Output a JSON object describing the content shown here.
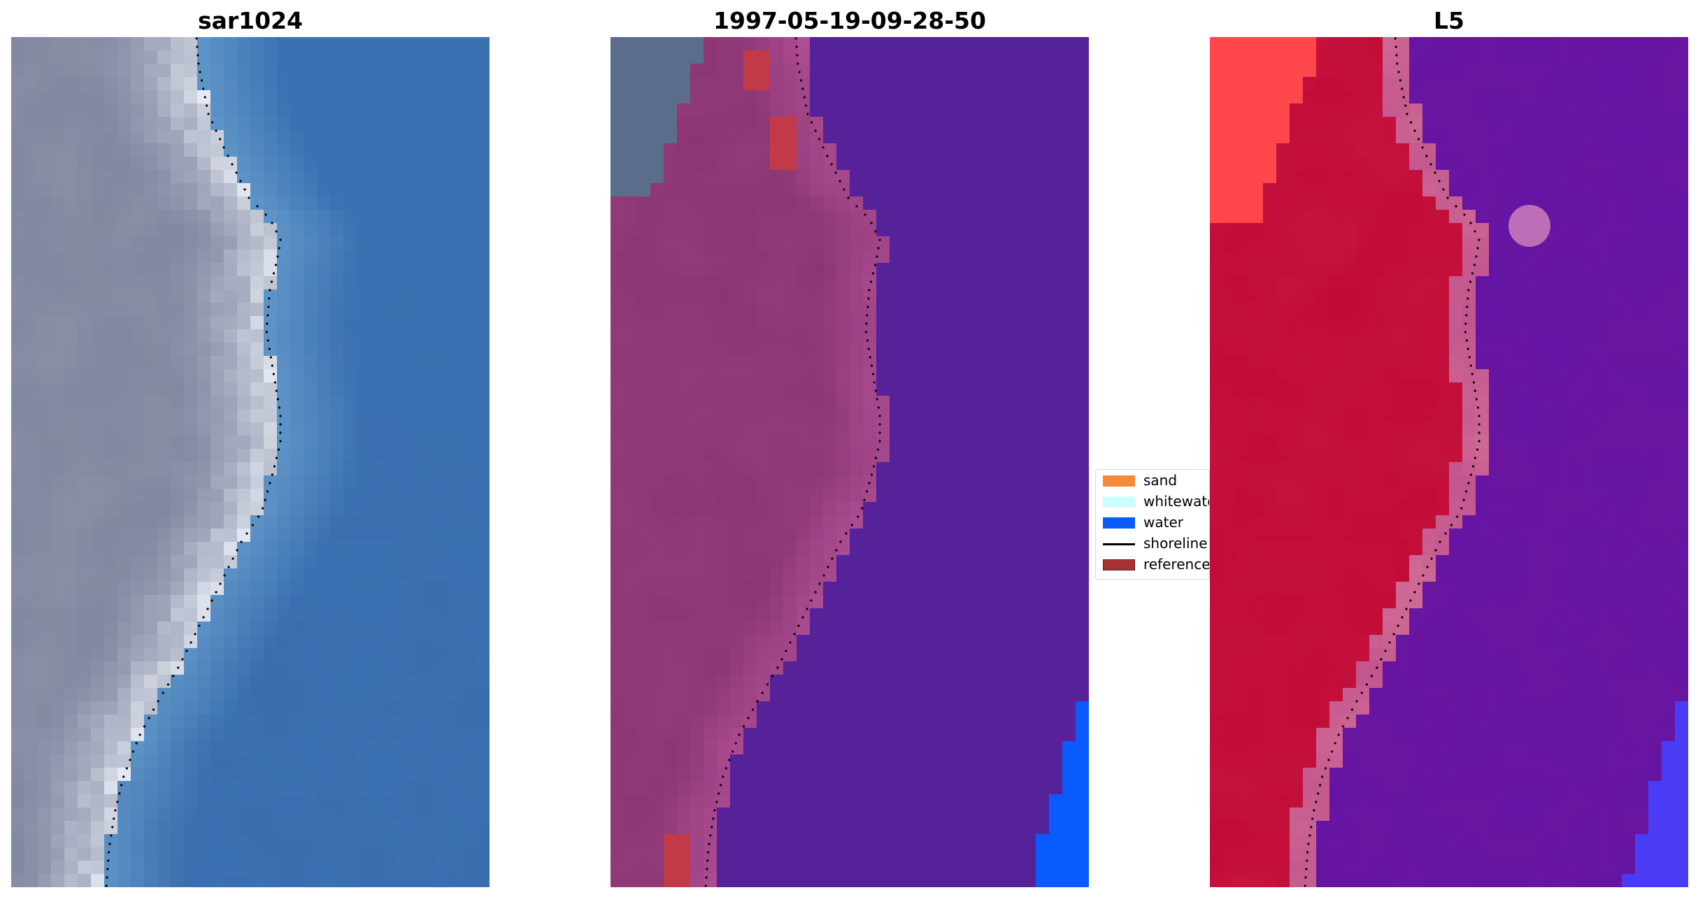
{
  "panels": [
    {
      "title": "sar1024"
    },
    {
      "title": "1997-05-19-09-28-50"
    },
    {
      "title": "L5"
    }
  ],
  "legend": {
    "items": [
      {
        "label": "sand",
        "color": "#f58a3c",
        "kind": "patch"
      },
      {
        "label": "whitewater",
        "color": "#ccfffb",
        "kind": "patch"
      },
      {
        "label": "water",
        "color": "#0a5bfd",
        "kind": "patch"
      },
      {
        "label": "shoreline",
        "color": "#000000",
        "kind": "line"
      },
      {
        "label": "reference",
        "color": "#a43236",
        "kind": "patch",
        "edge": "#6e1a1e"
      }
    ]
  },
  "colors": {
    "rgb_land": "#7f869f",
    "rgb_water": "#3b71b3",
    "rgb_surf": "#ecf0f8",
    "class_land": "#8a3672",
    "class_water": "#56229a",
    "class_water_blue": "#0a5bfd",
    "class_reference": "#c23a48",
    "ndwi_land": "#c10a36",
    "ndwi_water": "#6a159e",
    "ndwi_blue": "#4a3cf5"
  }
}
